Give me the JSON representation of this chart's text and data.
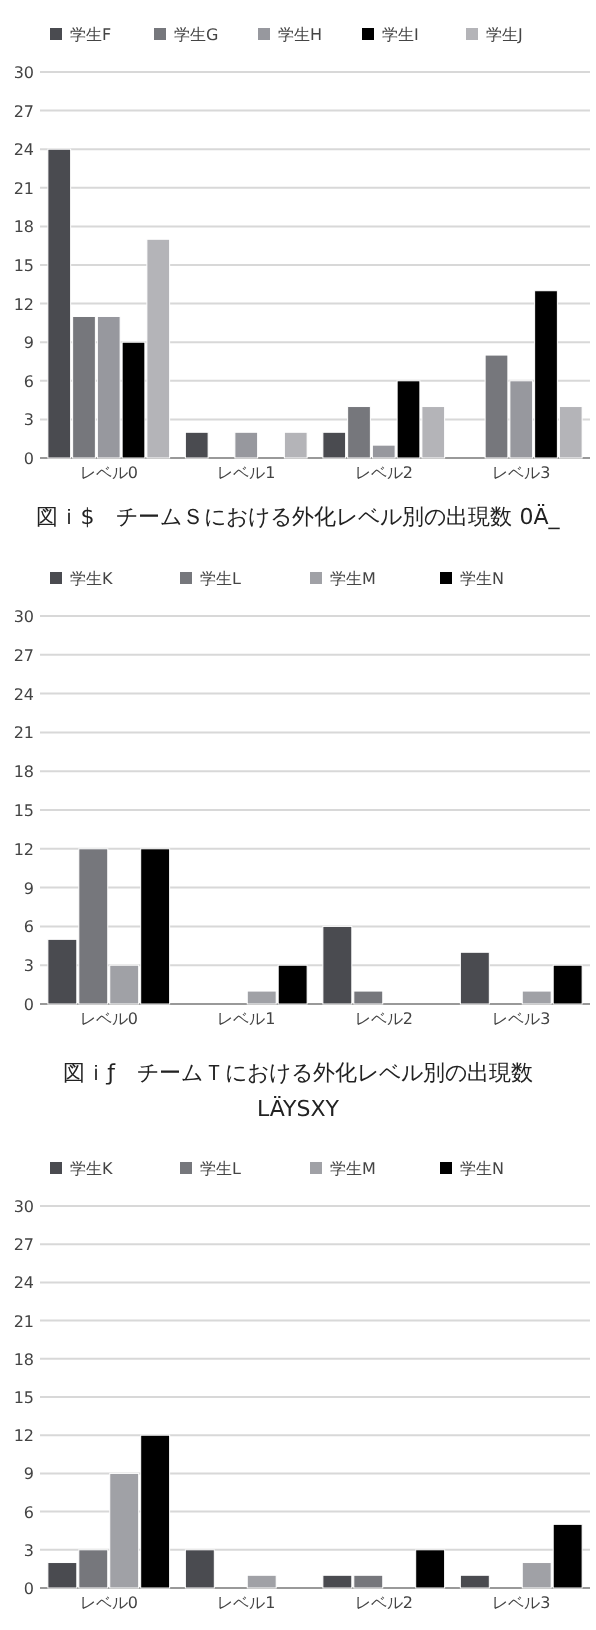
{
  "chart_data": [
    {
      "type": "bar",
      "categories": [
        "レベル0",
        "レベル1",
        "レベル2",
        "レベル3"
      ],
      "ylim": [
        0,
        30
      ],
      "yticks": [
        0,
        3,
        6,
        9,
        12,
        15,
        18,
        21,
        24,
        27,
        30
      ],
      "grid": "y",
      "legend": "top",
      "series": [
        {
          "name": "学生F",
          "color": "#4a4b50",
          "values": [
            24,
            2,
            2,
            0
          ]
        },
        {
          "name": "学生G",
          "color": "#76777c",
          "values": [
            11,
            0,
            4,
            8
          ]
        },
        {
          "name": "学生H",
          "color": "#97989e",
          "values": [
            11,
            2,
            1,
            6
          ]
        },
        {
          "name": "学生I",
          "color": "#000000",
          "values": [
            9,
            0,
            6,
            13
          ]
        },
        {
          "name": "学生J",
          "color": "#b4b4b8",
          "values": [
            17,
            2,
            4,
            4
          ]
        }
      ]
    },
    {
      "type": "bar",
      "title": "図ｉ$　チームＳにおける外化レベル別の出現数 0Ä_",
      "categories": [
        "レベル0",
        "レベル1",
        "レベル2",
        "レベル3"
      ],
      "ylim": [
        0,
        30
      ],
      "yticks": [
        0,
        3,
        6,
        9,
        12,
        15,
        18,
        21,
        24,
        27,
        30
      ],
      "grid": "y",
      "legend": "top",
      "series": [
        {
          "name": "学生K",
          "color": "#4a4b50",
          "values": [
            5,
            0,
            6,
            4
          ]
        },
        {
          "name": "学生L",
          "color": "#76777c",
          "values": [
            12,
            0,
            1,
            0
          ]
        },
        {
          "name": "学生M",
          "color": "#a0a1a6",
          "values": [
            3,
            1,
            0,
            1
          ]
        },
        {
          "name": "学生N",
          "color": "#000000",
          "values": [
            12,
            3,
            0,
            3
          ]
        }
      ]
    },
    {
      "type": "bar",
      "title": "図ｉƒ　チームＴにおける外化レベル別の出現数",
      "subtitle": "LÄYSXY",
      "categories": [
        "レベル0",
        "レベル1",
        "レベル2",
        "レベル3"
      ],
      "ylim": [
        0,
        30
      ],
      "yticks": [
        0,
        3,
        6,
        9,
        12,
        15,
        18,
        21,
        24,
        27,
        30
      ],
      "grid": "y",
      "legend": "top",
      "series": [
        {
          "name": "学生K",
          "color": "#4a4b50",
          "values": [
            2,
            3,
            1,
            1
          ]
        },
        {
          "name": "学生L",
          "color": "#76777c",
          "values": [
            3,
            0,
            1,
            0
          ]
        },
        {
          "name": "学生M",
          "color": "#a0a1a6",
          "values": [
            9,
            1,
            0,
            2
          ]
        },
        {
          "name": "学生N",
          "color": "#000000",
          "values": [
            12,
            0,
            3,
            5
          ]
        }
      ]
    }
  ]
}
